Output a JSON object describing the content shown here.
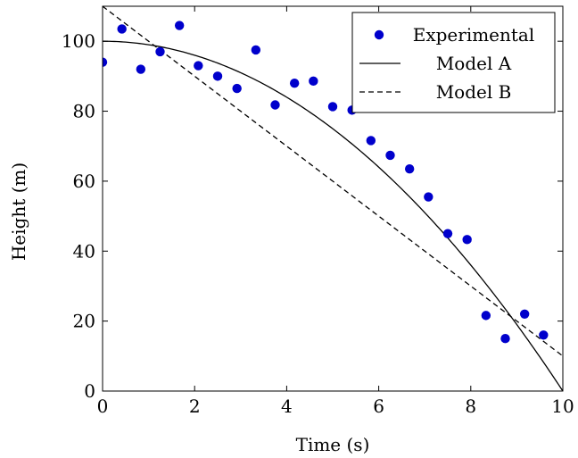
{
  "chart_data": {
    "type": "scatter",
    "xlabel": "Time (s)",
    "ylabel": "Height (m)",
    "xlim": [
      0,
      10
    ],
    "ylim": [
      0,
      110
    ],
    "xticks": [
      "0",
      "2",
      "4",
      "6",
      "8",
      "10"
    ],
    "yticks": [
      "0",
      "20",
      "40",
      "60",
      "80",
      "100"
    ],
    "grid": false,
    "legend_position": "top-right",
    "series": [
      {
        "name": "Experimental",
        "kind": "scatter",
        "color": "#0000cc",
        "x": [
          0,
          0.42,
          0.83,
          1.25,
          1.67,
          2.08,
          2.5,
          2.92,
          3.33,
          3.75,
          4.17,
          4.58,
          5.0,
          5.42,
          5.83,
          6.25,
          6.67,
          7.08,
          7.5,
          7.92,
          8.33,
          8.75,
          9.17,
          9.58
        ],
        "y": [
          94,
          103.5,
          92,
          97,
          104.5,
          93,
          90,
          86.5,
          97.5,
          81.8,
          88,
          88.6,
          81.3,
          80.3,
          71.6,
          67.4,
          63.5,
          55.5,
          45,
          43.3,
          21.6,
          15,
          22,
          16
        ]
      },
      {
        "name": "Model A",
        "kind": "line",
        "style": "solid",
        "color": "#000000",
        "equation": "y = 100 - x^2"
      },
      {
        "name": "Model B",
        "kind": "line",
        "style": "dashed",
        "color": "#000000",
        "equation": "y = 110 - 10x"
      }
    ]
  }
}
